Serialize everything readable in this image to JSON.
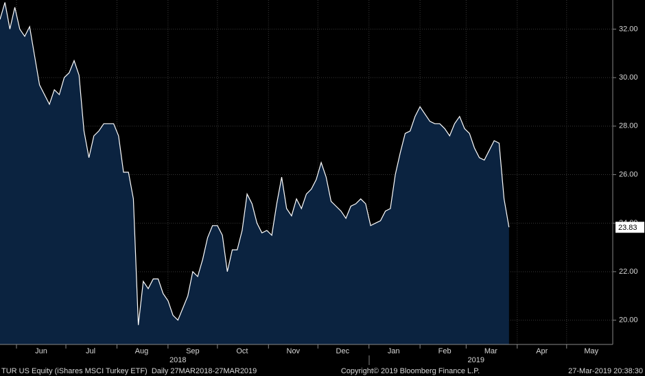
{
  "chart_data": {
    "type": "area",
    "x": [
      "2018-05-22",
      "2018-05-25",
      "2018-05-28",
      "2018-05-31",
      "2018-06-03",
      "2018-06-06",
      "2018-06-09",
      "2018-06-12",
      "2018-06-15",
      "2018-06-18",
      "2018-06-21",
      "2018-06-24",
      "2018-06-27",
      "2018-06-30",
      "2018-07-03",
      "2018-07-06",
      "2018-07-09",
      "2018-07-12",
      "2018-07-15",
      "2018-07-18",
      "2018-07-21",
      "2018-07-24",
      "2018-07-27",
      "2018-07-30",
      "2018-08-02",
      "2018-08-05",
      "2018-08-08",
      "2018-08-11",
      "2018-08-14",
      "2018-08-17",
      "2018-08-20",
      "2018-08-23",
      "2018-08-26",
      "2018-08-29",
      "2018-09-01",
      "2018-09-04",
      "2018-09-07",
      "2018-09-10",
      "2018-09-13",
      "2018-09-16",
      "2018-09-19",
      "2018-09-22",
      "2018-09-25",
      "2018-09-28",
      "2018-10-01",
      "2018-10-04",
      "2018-10-07",
      "2018-10-10",
      "2018-10-13",
      "2018-10-16",
      "2018-10-19",
      "2018-10-22",
      "2018-10-25",
      "2018-10-28",
      "2018-10-31",
      "2018-11-03",
      "2018-11-06",
      "2018-11-09",
      "2018-11-12",
      "2018-11-15",
      "2018-11-18",
      "2018-11-21",
      "2018-11-24",
      "2018-11-27",
      "2018-11-30",
      "2018-12-03",
      "2018-12-06",
      "2018-12-09",
      "2018-12-12",
      "2018-12-15",
      "2018-12-18",
      "2018-12-21",
      "2018-12-24",
      "2018-12-27",
      "2018-12-30",
      "2019-01-02",
      "2019-01-05",
      "2019-01-08",
      "2019-01-11",
      "2019-01-14",
      "2019-01-17",
      "2019-01-20",
      "2019-01-23",
      "2019-01-26",
      "2019-01-29",
      "2019-02-01",
      "2019-02-04",
      "2019-02-07",
      "2019-02-10",
      "2019-02-13",
      "2019-02-16",
      "2019-02-19",
      "2019-02-22",
      "2019-02-25",
      "2019-02-28",
      "2019-03-03",
      "2019-03-06",
      "2019-03-09",
      "2019-03-12",
      "2019-03-15",
      "2019-03-18",
      "2019-03-21",
      "2019-03-24",
      "2019-03-27"
    ],
    "values": [
      32.4,
      33.1,
      32.0,
      32.9,
      32.0,
      31.7,
      32.1,
      30.9,
      29.7,
      29.3,
      28.9,
      29.5,
      29.3,
      30.0,
      30.2,
      30.7,
      30.1,
      27.8,
      26.7,
      27.6,
      27.8,
      28.1,
      28.1,
      28.1,
      27.6,
      26.1,
      26.1,
      25.0,
      19.8,
      21.6,
      21.3,
      21.7,
      21.7,
      21.1,
      20.8,
      20.2,
      20.0,
      20.5,
      21.0,
      22.0,
      21.8,
      22.5,
      23.4,
      23.9,
      23.9,
      23.5,
      22.0,
      22.9,
      22.9,
      23.7,
      25.2,
      24.8,
      24.0,
      23.6,
      23.7,
      23.5,
      24.8,
      25.9,
      24.6,
      24.3,
      25.0,
      24.6,
      25.2,
      25.4,
      25.8,
      26.5,
      25.9,
      24.9,
      24.7,
      24.5,
      24.2,
      24.7,
      24.8,
      25.0,
      24.8,
      23.9,
      24.0,
      24.1,
      24.5,
      24.6,
      26.0,
      26.9,
      27.7,
      27.8,
      28.4,
      28.8,
      28.5,
      28.2,
      28.1,
      28.1,
      27.9,
      27.6,
      28.1,
      28.4,
      27.9,
      27.7,
      27.1,
      26.7,
      26.6,
      27.0,
      27.4,
      27.3,
      25.0,
      23.83
    ],
    "color": "#ffffff",
    "fill": "#0b2340",
    "xlim": [
      "2018-05-22",
      "2019-05-29"
    ],
    "xticks": [
      {
        "value": "2018-06-01",
        "label": "Jun"
      },
      {
        "value": "2018-07-01",
        "label": "Jul"
      },
      {
        "value": "2018-08-01",
        "label": "Aug"
      },
      {
        "value": "2018-09-01",
        "label": "Sep"
      },
      {
        "value": "2018-10-01",
        "label": "Oct"
      },
      {
        "value": "2018-11-01",
        "label": "Nov"
      },
      {
        "value": "2018-12-01",
        "label": "Dec"
      },
      {
        "value": "2019-01-01",
        "label": "Jan"
      },
      {
        "value": "2019-02-01",
        "label": "Feb"
      },
      {
        "value": "2019-03-01",
        "label": "Mar"
      },
      {
        "value": "2019-04-01",
        "label": "Apr"
      },
      {
        "value": "2019-05-01",
        "label": "May"
      }
    ],
    "year_labels": [
      {
        "value": "2018-09-01",
        "label": "2018"
      },
      {
        "value": "2019-03-01",
        "label": "2019"
      }
    ],
    "ylim": [
      19.0,
      33.2
    ],
    "yticks": [
      {
        "value": 20,
        "label": "20.00"
      },
      {
        "value": 22,
        "label": "22.00"
      },
      {
        "value": 24,
        "label": "24.00"
      },
      {
        "value": 26,
        "label": "26.00"
      },
      {
        "value": 28,
        "label": "28.00"
      },
      {
        "value": 30,
        "label": "30.00"
      },
      {
        "value": 32,
        "label": "32.00"
      }
    ],
    "grid": true,
    "footer_left": "TUR US Equity (iShares MSCI Turkey ETF)  Daily 27MAR2018-27MAR2019",
    "copyright": "Copyright© 2019 Bloomberg Finance L.P.",
    "timestamp": "27-Mar-2019 20:38:30"
  }
}
